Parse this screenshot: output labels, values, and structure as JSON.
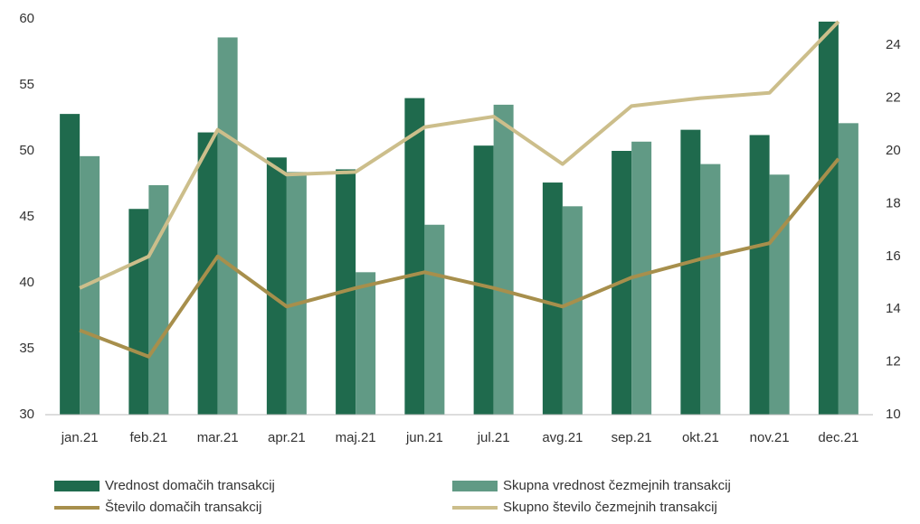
{
  "chart_data": {
    "type": "bar",
    "categories": [
      "jan.21",
      "feb.21",
      "mar.21",
      "apr.21",
      "maj.21",
      "jun.21",
      "jul.21",
      "avg.21",
      "sep.21",
      "okt.21",
      "nov.21",
      "dec.21"
    ],
    "series": [
      {
        "name": "Vrednost domačih transakcij",
        "type": "bar",
        "color": "#1f6a4d",
        "values": [
          52.8,
          45.6,
          51.4,
          49.5,
          48.6,
          54.0,
          50.4,
          47.6,
          50.0,
          51.6,
          51.2,
          59.8
        ]
      },
      {
        "name": "Skupna vrednost čezmejnih transakcij",
        "type": "bar",
        "color": "#619a85",
        "values": [
          49.6,
          47.4,
          58.6,
          48.4,
          40.8,
          44.4,
          53.5,
          45.8,
          50.7,
          49.0,
          48.2,
          52.1
        ]
      },
      {
        "name": "Število domačih transakcij",
        "type": "line",
        "axis": "y2",
        "color": "#a78f4c",
        "values": [
          13.2,
          12.2,
          16.0,
          14.1,
          14.8,
          15.4,
          14.8,
          14.1,
          15.2,
          15.9,
          16.5,
          19.7
        ]
      },
      {
        "name": "Skupno število čezmejnih transakcij",
        "type": "line",
        "axis": "y2",
        "color": "#ccbe8b",
        "values": [
          14.8,
          16.0,
          20.8,
          19.1,
          19.2,
          20.9,
          21.3,
          19.5,
          21.7,
          22.0,
          22.2,
          24.9
        ]
      }
    ],
    "ylim": [
      30,
      60
    ],
    "yticks": [
      30,
      35,
      40,
      45,
      50,
      55,
      60
    ],
    "y2lim": [
      10,
      25
    ],
    "y2ticks": [
      10,
      12,
      14,
      16,
      18,
      20,
      22,
      24
    ],
    "legend": "bottom"
  }
}
